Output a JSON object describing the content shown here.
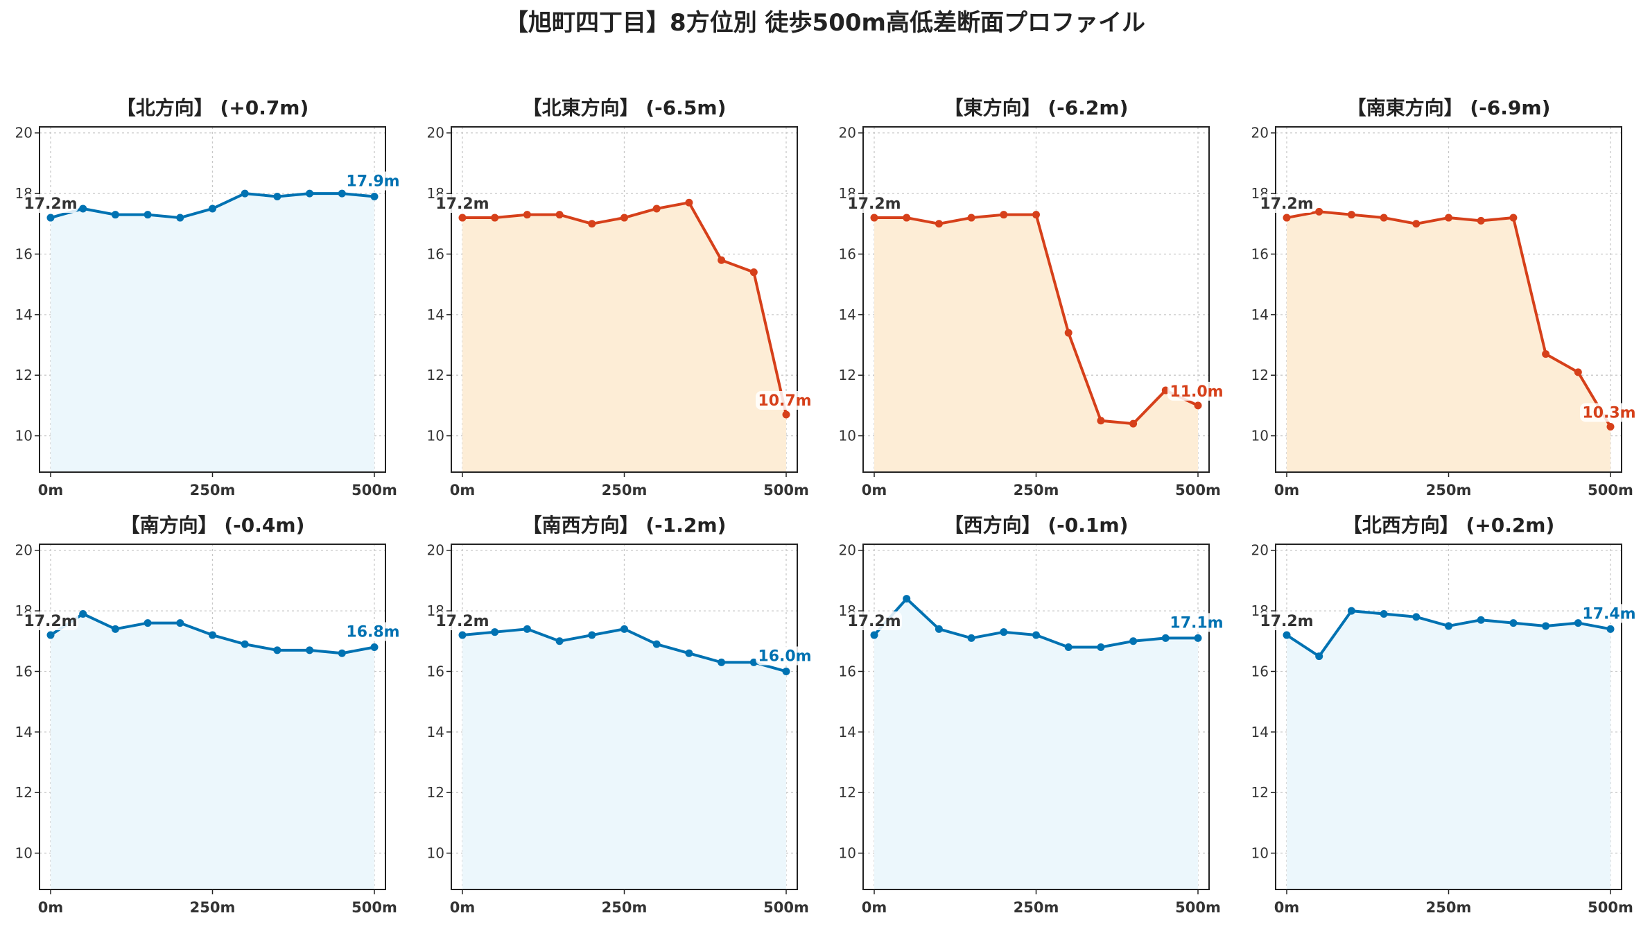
{
  "title": "【旭町四丁目】8方位別 徒歩500m高低差断面プロファイル",
  "chart_data": [
    {
      "type": "area",
      "title": "【北方向】 (+0.7m)",
      "x": [
        0,
        50,
        100,
        150,
        200,
        250,
        300,
        350,
        400,
        450,
        500
      ],
      "values": [
        17.2,
        17.5,
        17.3,
        17.3,
        17.2,
        17.5,
        18.0,
        17.9,
        18.0,
        18.0,
        17.9
      ],
      "start_label": "17.2m",
      "end_label": "17.9m",
      "trend": "up",
      "color": "#0072b2",
      "fill": "#ecf7fc",
      "xticks": [
        "0m",
        "250m",
        "500m"
      ],
      "yticks": [
        "10",
        "12",
        "14",
        "16",
        "18",
        "20"
      ],
      "ylim": [
        8.8,
        20.2
      ],
      "grid": true
    },
    {
      "type": "area",
      "title": "【北東方向】 (-6.5m)",
      "x": [
        0,
        50,
        100,
        150,
        200,
        250,
        300,
        350,
        400,
        450,
        500
      ],
      "values": [
        17.2,
        17.2,
        17.3,
        17.3,
        17.0,
        17.2,
        17.5,
        17.7,
        15.8,
        15.4,
        10.7
      ],
      "start_label": "17.2m",
      "end_label": "10.7m",
      "trend": "down",
      "color": "#d6401a",
      "fill": "#fdedd6",
      "xticks": [
        "0m",
        "250m",
        "500m"
      ],
      "yticks": [
        "10",
        "12",
        "14",
        "16",
        "18",
        "20"
      ],
      "ylim": [
        8.8,
        20.2
      ],
      "grid": true
    },
    {
      "type": "area",
      "title": "【東方向】 (-6.2m)",
      "x": [
        0,
        50,
        100,
        150,
        200,
        250,
        300,
        350,
        400,
        450,
        500
      ],
      "values": [
        17.2,
        17.2,
        17.0,
        17.2,
        17.3,
        17.3,
        13.4,
        10.5,
        10.4,
        11.5,
        11.0
      ],
      "start_label": "17.2m",
      "end_label": "11.0m",
      "trend": "down",
      "color": "#d6401a",
      "fill": "#fdedd6",
      "xticks": [
        "0m",
        "250m",
        "500m"
      ],
      "yticks": [
        "10",
        "12",
        "14",
        "16",
        "18",
        "20"
      ],
      "ylim": [
        8.8,
        20.2
      ],
      "grid": true
    },
    {
      "type": "area",
      "title": "【南東方向】 (-6.9m)",
      "x": [
        0,
        50,
        100,
        150,
        200,
        250,
        300,
        350,
        400,
        450,
        500
      ],
      "values": [
        17.2,
        17.4,
        17.3,
        17.2,
        17.0,
        17.2,
        17.1,
        17.2,
        12.7,
        12.1,
        10.3
      ],
      "start_label": "17.2m",
      "end_label": "10.3m",
      "trend": "down",
      "color": "#d6401a",
      "fill": "#fdedd6",
      "xticks": [
        "0m",
        "250m",
        "500m"
      ],
      "yticks": [
        "10",
        "12",
        "14",
        "16",
        "18",
        "20"
      ],
      "ylim": [
        8.8,
        20.2
      ],
      "grid": true
    },
    {
      "type": "area",
      "title": "【南方向】 (-0.4m)",
      "x": [
        0,
        50,
        100,
        150,
        200,
        250,
        300,
        350,
        400,
        450,
        500
      ],
      "values": [
        17.2,
        17.9,
        17.4,
        17.6,
        17.6,
        17.2,
        16.9,
        16.7,
        16.7,
        16.6,
        16.8
      ],
      "start_label": "17.2m",
      "end_label": "16.8m",
      "trend": "up",
      "color": "#0072b2",
      "fill": "#ecf7fc",
      "xticks": [
        "0m",
        "250m",
        "500m"
      ],
      "yticks": [
        "10",
        "12",
        "14",
        "16",
        "18",
        "20"
      ],
      "ylim": [
        8.8,
        20.2
      ],
      "grid": true
    },
    {
      "type": "area",
      "title": "【南西方向】 (-1.2m)",
      "x": [
        0,
        50,
        100,
        150,
        200,
        250,
        300,
        350,
        400,
        450,
        500
      ],
      "values": [
        17.2,
        17.3,
        17.4,
        17.0,
        17.2,
        17.4,
        16.9,
        16.6,
        16.3,
        16.3,
        16.0
      ],
      "start_label": "17.2m",
      "end_label": "16.0m",
      "trend": "up",
      "color": "#0072b2",
      "fill": "#ecf7fc",
      "xticks": [
        "0m",
        "250m",
        "500m"
      ],
      "yticks": [
        "10",
        "12",
        "14",
        "16",
        "18",
        "20"
      ],
      "ylim": [
        8.8,
        20.2
      ],
      "grid": true
    },
    {
      "type": "area",
      "title": "【西方向】 (-0.1m)",
      "x": [
        0,
        50,
        100,
        150,
        200,
        250,
        300,
        350,
        400,
        450,
        500
      ],
      "values": [
        17.2,
        18.4,
        17.4,
        17.1,
        17.3,
        17.2,
        16.8,
        16.8,
        17.0,
        17.1,
        17.1
      ],
      "start_label": "17.2m",
      "end_label": "17.1m",
      "trend": "up",
      "color": "#0072b2",
      "fill": "#ecf7fc",
      "xticks": [
        "0m",
        "250m",
        "500m"
      ],
      "yticks": [
        "10",
        "12",
        "14",
        "16",
        "18",
        "20"
      ],
      "ylim": [
        8.8,
        20.2
      ],
      "grid": true
    },
    {
      "type": "area",
      "title": "【北西方向】 (+0.2m)",
      "x": [
        0,
        50,
        100,
        150,
        200,
        250,
        300,
        350,
        400,
        450,
        500
      ],
      "values": [
        17.2,
        16.5,
        18.0,
        17.9,
        17.8,
        17.5,
        17.7,
        17.6,
        17.5,
        17.6,
        17.4
      ],
      "start_label": "17.2m",
      "end_label": "17.4m",
      "trend": "up",
      "color": "#0072b2",
      "fill": "#ecf7fc",
      "xticks": [
        "0m",
        "250m",
        "500m"
      ],
      "yticks": [
        "10",
        "12",
        "14",
        "16",
        "18",
        "20"
      ],
      "ylim": [
        8.8,
        20.2
      ],
      "grid": true
    }
  ]
}
